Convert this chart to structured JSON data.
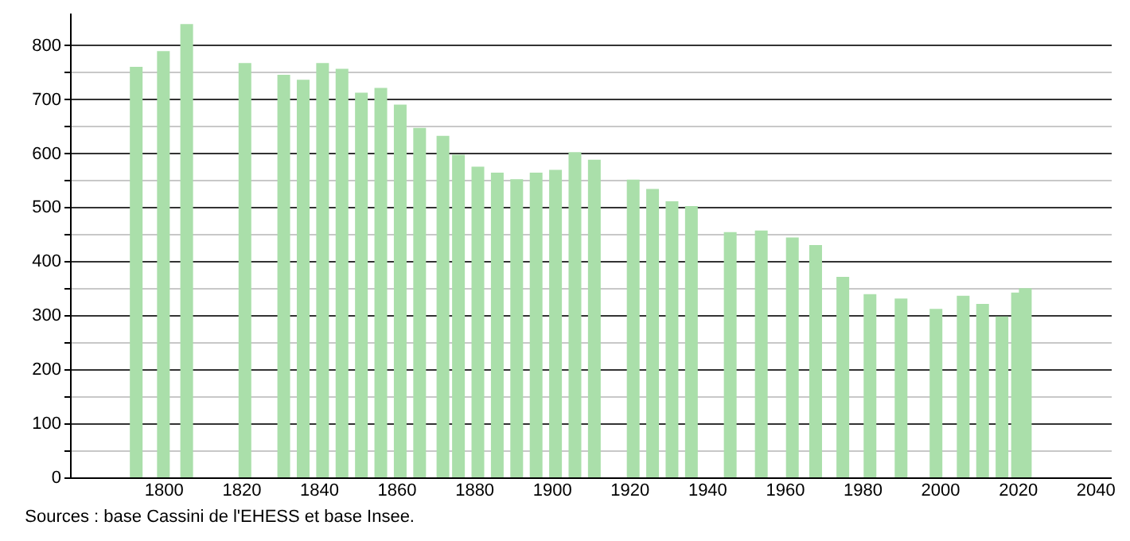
{
  "chart_data": {
    "type": "bar",
    "x": [
      1793,
      1800,
      1806,
      1821,
      1831,
      1836,
      1841,
      1846,
      1851,
      1856,
      1861,
      1866,
      1872,
      1876,
      1881,
      1886,
      1891,
      1896,
      1901,
      1906,
      1911,
      1921,
      1926,
      1931,
      1936,
      1946,
      1954,
      1962,
      1968,
      1975,
      1982,
      1990,
      1999,
      2006,
      2011,
      2016,
      2020,
      2022
    ],
    "values": [
      760,
      789,
      839,
      767,
      745,
      736,
      767,
      756,
      712,
      721,
      690,
      647,
      632,
      597,
      575,
      564,
      552,
      564,
      569,
      602,
      588,
      551,
      534,
      511,
      502,
      454,
      457,
      444,
      430,
      371,
      339,
      331,
      312,
      336,
      321,
      298,
      342,
      350
    ],
    "color": "#aadfaa",
    "xlim": [
      1778,
      2042
    ],
    "xticks": [
      1800,
      1820,
      1840,
      1860,
      1880,
      1900,
      1920,
      1940,
      1960,
      1980,
      2000,
      2020,
      2040
    ],
    "ylim": [
      0,
      860
    ],
    "yticks": [
      0,
      {
        "value": 50,
        "label": null
      },
      100,
      {
        "value": 150,
        "label": null
      },
      200,
      {
        "value": 250,
        "label": null
      },
      300,
      {
        "value": 350,
        "label": null
      },
      400,
      {
        "value": 450,
        "label": null
      },
      500,
      {
        "value": 550,
        "label": null
      },
      600,
      {
        "value": 650,
        "label": null
      },
      700,
      {
        "value": 750,
        "label": null
      },
      800
    ],
    "grid": "y",
    "annotations": [
      "Sources : base Cassini de l'EHESS et base Insee."
    ]
  }
}
